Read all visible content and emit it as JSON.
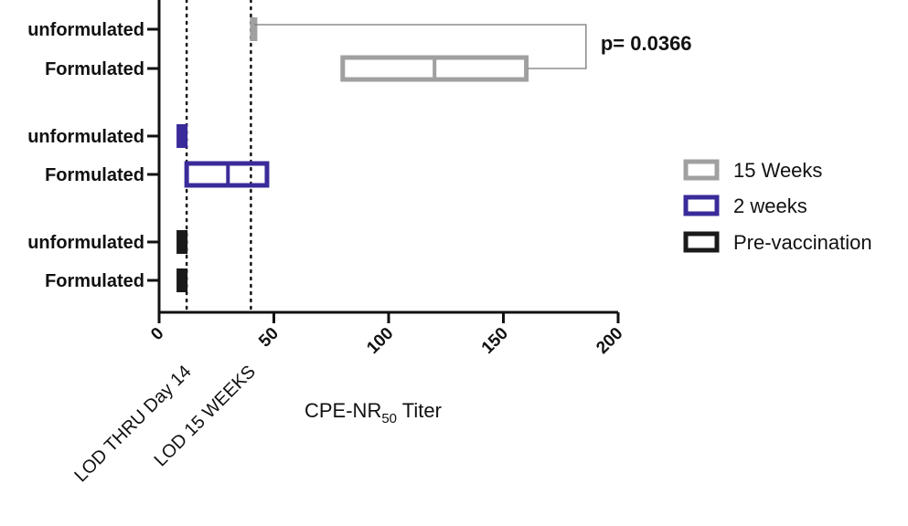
{
  "chart_data": {
    "type": "box",
    "orientation": "horizontal",
    "categories": [
      "unformulated",
      "Formulated",
      "unformulated",
      "Formulated",
      "unformulated",
      "Formulated"
    ],
    "xlabel_main": "CPE-NR",
    "xlabel_sub": "50",
    "xlabel_tail": " Titer",
    "xlim": [
      0,
      200
    ],
    "xticks": [
      0,
      50,
      100,
      150,
      200
    ],
    "series": [
      {
        "name": "15 Weeks",
        "color": "#a0a0a0",
        "boxes": [
          {
            "category_index": 0,
            "min": 40,
            "median": 40,
            "max": 40
          },
          {
            "category_index": 1,
            "min": 80,
            "median": 120,
            "max": 160
          }
        ]
      },
      {
        "name": "2 weeks",
        "color": "#3a2b9a",
        "boxes": [
          {
            "category_index": 2,
            "min": 8,
            "median": 10,
            "max": 12
          },
          {
            "category_index": 3,
            "min": 12,
            "median": 30,
            "max": 47
          }
        ]
      },
      {
        "name": "Pre-vaccination",
        "color": "#1a1a1a",
        "boxes": [
          {
            "category_index": 4,
            "min": 8,
            "median": 10,
            "max": 12
          },
          {
            "category_index": 5,
            "min": 8,
            "median": 10,
            "max": 12
          }
        ]
      }
    ],
    "reference_lines": [
      {
        "x": 12,
        "label": "LOD  THRU Day 14"
      },
      {
        "x": 40,
        "label": "LOD 15 WEEKS"
      }
    ],
    "annotation": {
      "text": "p= 0.0366",
      "between_category_indices": [
        0,
        1
      ],
      "to_x": 186
    },
    "legend": {
      "placement": "right",
      "entries": [
        "15 Weeks",
        "2 weeks",
        "Pre-vaccination"
      ]
    },
    "grid": false
  }
}
